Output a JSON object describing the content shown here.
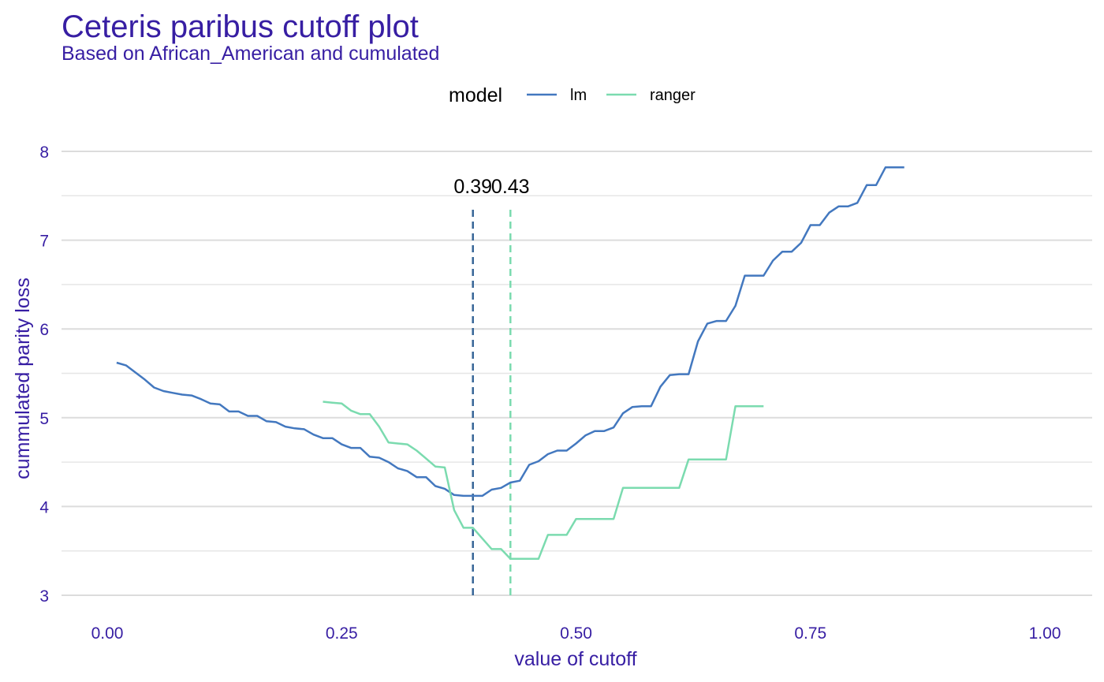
{
  "chart_data": {
    "type": "line",
    "title": "Ceteris paribus cutoff plot",
    "subtitle": "Based on African_American and cumulated",
    "xlabel": "value of cutoff",
    "ylabel": "cummulated parity loss",
    "xlim": [
      0,
      1
    ],
    "ylim": [
      3,
      8
    ],
    "x_ticks": [
      "0.00",
      "0.25",
      "0.50",
      "0.75",
      "1.00"
    ],
    "y_ticks": [
      "3",
      "4",
      "5",
      "6",
      "7",
      "8"
    ],
    "legend": {
      "title": "model",
      "position": "top"
    },
    "grid": true,
    "series": [
      {
        "name": "lm",
        "color": "#4378bf",
        "optimal_cutoff": 0.39,
        "optimal_label": "0.39",
        "points": [
          [
            0.01,
            5.62
          ],
          [
            0.02,
            5.59
          ],
          [
            0.03,
            5.51
          ],
          [
            0.04,
            5.43
          ],
          [
            0.05,
            5.34
          ],
          [
            0.06,
            5.3
          ],
          [
            0.07,
            5.28
          ],
          [
            0.08,
            5.26
          ],
          [
            0.09,
            5.25
          ],
          [
            0.1,
            5.21
          ],
          [
            0.11,
            5.16
          ],
          [
            0.12,
            5.15
          ],
          [
            0.13,
            5.07
          ],
          [
            0.14,
            5.07
          ],
          [
            0.15,
            5.02
          ],
          [
            0.16,
            5.02
          ],
          [
            0.17,
            4.96
          ],
          [
            0.18,
            4.95
          ],
          [
            0.19,
            4.9
          ],
          [
            0.2,
            4.88
          ],
          [
            0.21,
            4.87
          ],
          [
            0.22,
            4.81
          ],
          [
            0.23,
            4.77
          ],
          [
            0.24,
            4.77
          ],
          [
            0.25,
            4.7
          ],
          [
            0.26,
            4.66
          ],
          [
            0.27,
            4.66
          ],
          [
            0.28,
            4.56
          ],
          [
            0.29,
            4.55
          ],
          [
            0.3,
            4.5
          ],
          [
            0.31,
            4.43
          ],
          [
            0.32,
            4.4
          ],
          [
            0.33,
            4.33
          ],
          [
            0.34,
            4.33
          ],
          [
            0.35,
            4.23
          ],
          [
            0.36,
            4.2
          ],
          [
            0.37,
            4.13
          ],
          [
            0.38,
            4.12
          ],
          [
            0.39,
            4.12
          ],
          [
            0.4,
            4.12
          ],
          [
            0.41,
            4.19
          ],
          [
            0.42,
            4.21
          ],
          [
            0.43,
            4.27
          ],
          [
            0.44,
            4.29
          ],
          [
            0.45,
            4.47
          ],
          [
            0.46,
            4.51
          ],
          [
            0.47,
            4.59
          ],
          [
            0.48,
            4.63
          ],
          [
            0.49,
            4.63
          ],
          [
            0.5,
            4.71
          ],
          [
            0.51,
            4.8
          ],
          [
            0.52,
            4.85
          ],
          [
            0.53,
            4.85
          ],
          [
            0.54,
            4.89
          ],
          [
            0.55,
            5.05
          ],
          [
            0.56,
            5.12
          ],
          [
            0.57,
            5.13
          ],
          [
            0.58,
            5.13
          ],
          [
            0.59,
            5.35
          ],
          [
            0.6,
            5.48
          ],
          [
            0.61,
            5.49
          ],
          [
            0.62,
            5.49
          ],
          [
            0.63,
            5.86
          ],
          [
            0.64,
            6.06
          ],
          [
            0.65,
            6.09
          ],
          [
            0.66,
            6.09
          ],
          [
            0.67,
            6.26
          ],
          [
            0.68,
            6.6
          ],
          [
            0.69,
            6.6
          ],
          [
            0.7,
            6.6
          ],
          [
            0.71,
            6.77
          ],
          [
            0.72,
            6.87
          ],
          [
            0.73,
            6.87
          ],
          [
            0.74,
            6.97
          ],
          [
            0.75,
            7.17
          ],
          [
            0.76,
            7.17
          ],
          [
            0.77,
            7.31
          ],
          [
            0.78,
            7.38
          ],
          [
            0.79,
            7.38
          ],
          [
            0.8,
            7.42
          ],
          [
            0.81,
            7.62
          ],
          [
            0.82,
            7.62
          ],
          [
            0.83,
            7.82
          ],
          [
            0.84,
            7.82
          ],
          [
            0.85,
            7.82
          ]
        ]
      },
      {
        "name": "ranger",
        "color": "#7bdbaf",
        "optimal_cutoff": 0.43,
        "optimal_label": "0.43",
        "points": [
          [
            0.23,
            5.18
          ],
          [
            0.24,
            5.17
          ],
          [
            0.25,
            5.16
          ],
          [
            0.26,
            5.08
          ],
          [
            0.27,
            5.04
          ],
          [
            0.28,
            5.04
          ],
          [
            0.29,
            4.9
          ],
          [
            0.3,
            4.72
          ],
          [
            0.31,
            4.71
          ],
          [
            0.32,
            4.7
          ],
          [
            0.33,
            4.63
          ],
          [
            0.34,
            4.54
          ],
          [
            0.35,
            4.45
          ],
          [
            0.36,
            4.44
          ],
          [
            0.37,
            3.96
          ],
          [
            0.38,
            3.76
          ],
          [
            0.39,
            3.76
          ],
          [
            0.4,
            3.64
          ],
          [
            0.41,
            3.52
          ],
          [
            0.42,
            3.52
          ],
          [
            0.43,
            3.41
          ],
          [
            0.44,
            3.41
          ],
          [
            0.45,
            3.41
          ],
          [
            0.46,
            3.41
          ],
          [
            0.47,
            3.68
          ],
          [
            0.48,
            3.68
          ],
          [
            0.49,
            3.68
          ],
          [
            0.5,
            3.86
          ],
          [
            0.51,
            3.86
          ],
          [
            0.52,
            3.86
          ],
          [
            0.53,
            3.86
          ],
          [
            0.54,
            3.86
          ],
          [
            0.55,
            4.21
          ],
          [
            0.56,
            4.21
          ],
          [
            0.57,
            4.21
          ],
          [
            0.58,
            4.21
          ],
          [
            0.59,
            4.21
          ],
          [
            0.6,
            4.21
          ],
          [
            0.61,
            4.21
          ],
          [
            0.62,
            4.53
          ],
          [
            0.63,
            4.53
          ],
          [
            0.64,
            4.53
          ],
          [
            0.65,
            4.53
          ],
          [
            0.66,
            4.53
          ],
          [
            0.67,
            5.13
          ],
          [
            0.68,
            5.13
          ],
          [
            0.69,
            5.13
          ],
          [
            0.7,
            5.13
          ]
        ]
      }
    ]
  }
}
